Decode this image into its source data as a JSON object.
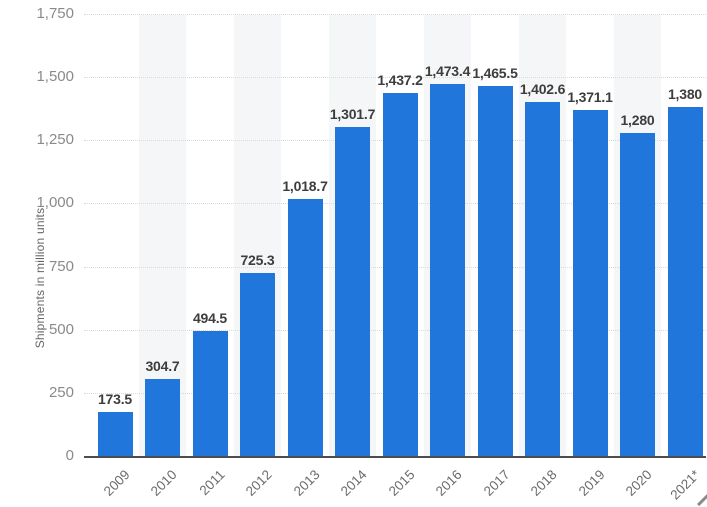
{
  "chart_data": {
    "type": "bar",
    "title": "",
    "ylabel": "Shipments in million units",
    "xlabel": "",
    "categories": [
      "2009",
      "2010",
      "2011",
      "2012",
      "2013",
      "2014",
      "2015",
      "2016",
      "2017",
      "2018",
      "2019",
      "2020",
      "2021*"
    ],
    "values": [
      173.5,
      304.7,
      494.5,
      725.3,
      1018.7,
      1301.7,
      1437.2,
      1473.4,
      1465.5,
      1402.6,
      1371.1,
      1280,
      1380
    ],
    "value_labels": [
      "173.5",
      "304.7",
      "494.5",
      "725.3",
      "1,018.7",
      "1,301.7",
      "1,437.2",
      "1,473.4",
      "1,465.5",
      "1,402.6",
      "1,371.1",
      "1,280",
      "1,380"
    ],
    "ylim": [
      0,
      1750
    ],
    "yticks": [
      0,
      250,
      500,
      750,
      1000,
      1250,
      1500,
      1750
    ],
    "ytick_labels": [
      "0",
      "250",
      "500",
      "750",
      "1,000",
      "1,250",
      "1,500",
      "1,750"
    ],
    "grid": "horizontal-dotted",
    "legend": "none",
    "background_stripes": "alternating vertical bands behind every second bar",
    "colors": {
      "bar": "#2176DC",
      "stripe": "#f5f6f8",
      "gridline": "#d9d9d9",
      "axis_line": "#4d4d4d",
      "ytick_text": "#8a8a8a",
      "value_text": "#3d3d3d",
      "xlabel_text": "#6b6b6b",
      "ylabel_text": "#666666",
      "background": "#ffffff"
    }
  }
}
